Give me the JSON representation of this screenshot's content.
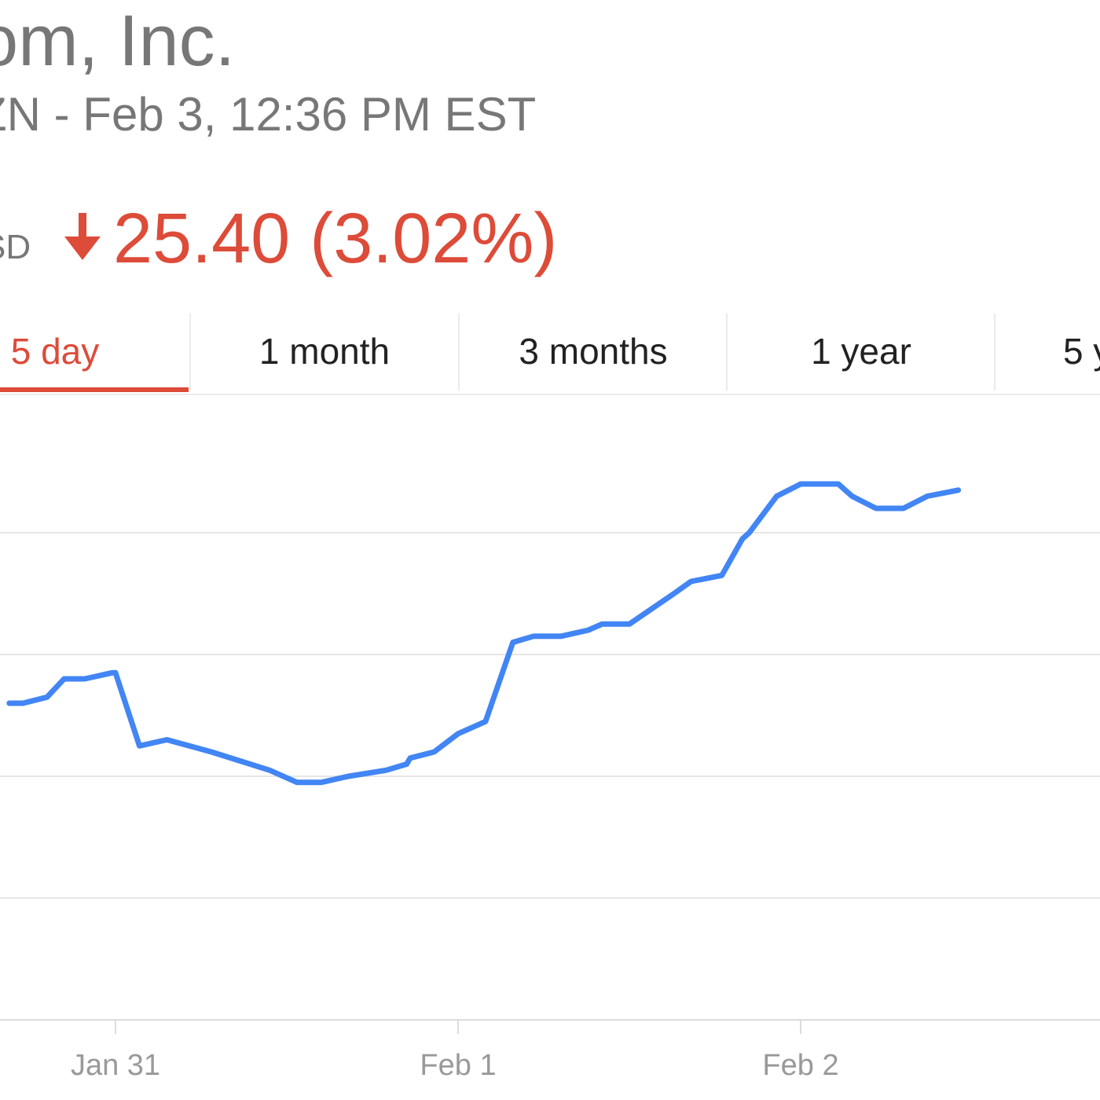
{
  "header": {
    "company_name": "om, Inc.",
    "subtitle": "ZN - Feb 3, 12:36 PM EST",
    "currency": "SD"
  },
  "quote": {
    "change_text": "25.40 (3.02%)",
    "direction_icon": "down-arrow-icon",
    "change_color": "#dd4b39"
  },
  "tabs": [
    {
      "label": "5 day",
      "active": true
    },
    {
      "label": "1 month",
      "active": false
    },
    {
      "label": "3 months",
      "active": false
    },
    {
      "label": "1 year",
      "active": false
    },
    {
      "label": "5 y",
      "active": false
    }
  ],
  "chart_data": {
    "type": "line",
    "grid": true,
    "line_color": "#4285f4",
    "x_tick_labels": [
      "Jan 31",
      "Feb 1",
      "Feb 2"
    ],
    "ylim": [
      0,
      1
    ],
    "gridline_levels": [
      0,
      0.2,
      0.4,
      0.6,
      0.8
    ],
    "series": [
      {
        "x": [
          -0.31,
          -0.27,
          -0.2,
          -0.15,
          -0.09,
          -0.01,
          0.0,
          0.07,
          0.15,
          0.28,
          0.45,
          0.53,
          0.6,
          0.68,
          0.79,
          0.85,
          0.86,
          0.93,
          1.0,
          1.08,
          1.16,
          1.22,
          1.3,
          1.38,
          1.42,
          1.5,
          1.63,
          1.68,
          1.77,
          1.83,
          1.85,
          1.93,
          2.0,
          2.11,
          2.15,
          2.22,
          2.3,
          2.37,
          2.46
        ],
        "y": [
          0.52,
          0.52,
          0.53,
          0.56,
          0.56,
          0.57,
          0.57,
          0.45,
          0.46,
          0.44,
          0.41,
          0.39,
          0.39,
          0.4,
          0.41,
          0.42,
          0.43,
          0.44,
          0.47,
          0.49,
          0.62,
          0.63,
          0.63,
          0.64,
          0.65,
          0.65,
          0.7,
          0.72,
          0.73,
          0.79,
          0.8,
          0.86,
          0.88,
          0.88,
          0.86,
          0.84,
          0.84,
          0.86,
          0.87
        ]
      }
    ]
  }
}
